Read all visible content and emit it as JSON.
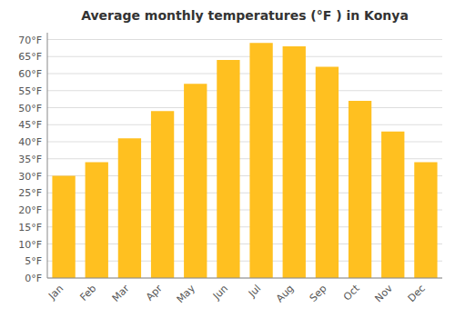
{
  "chart_data": {
    "type": "bar",
    "title": "Average monthly temperatures (°F ) in Konya",
    "categories": [
      "Jan",
      "Feb",
      "Mar",
      "Apr",
      "May",
      "Jun",
      "Jul",
      "Aug",
      "Sep",
      "Oct",
      "Nov",
      "Dec"
    ],
    "values": [
      30,
      34,
      41,
      49,
      57,
      64,
      69,
      68,
      62,
      52,
      43,
      34
    ],
    "color": "#FFC020",
    "ylim": [
      0,
      72
    ],
    "yticks": [
      {
        "value": 0,
        "label": "0°F"
      },
      {
        "value": 5,
        "label": "5°F"
      },
      {
        "value": 10,
        "label": "10°F"
      },
      {
        "value": 15,
        "label": "15°F"
      },
      {
        "value": 20,
        "label": "20°F"
      },
      {
        "value": 25,
        "label": "25°F"
      },
      {
        "value": 30,
        "label": "30°F"
      },
      {
        "value": 35,
        "label": "35°F"
      },
      {
        "value": 40,
        "label": "40°F"
      },
      {
        "value": 45,
        "label": "45°F"
      },
      {
        "value": 50,
        "label": "50°F"
      },
      {
        "value": 55,
        "label": "55°F"
      },
      {
        "value": 60,
        "label": "60°F"
      },
      {
        "value": 65,
        "label": "65°F"
      },
      {
        "value": 70,
        "label": "70°F"
      }
    ],
    "grid": true
  }
}
